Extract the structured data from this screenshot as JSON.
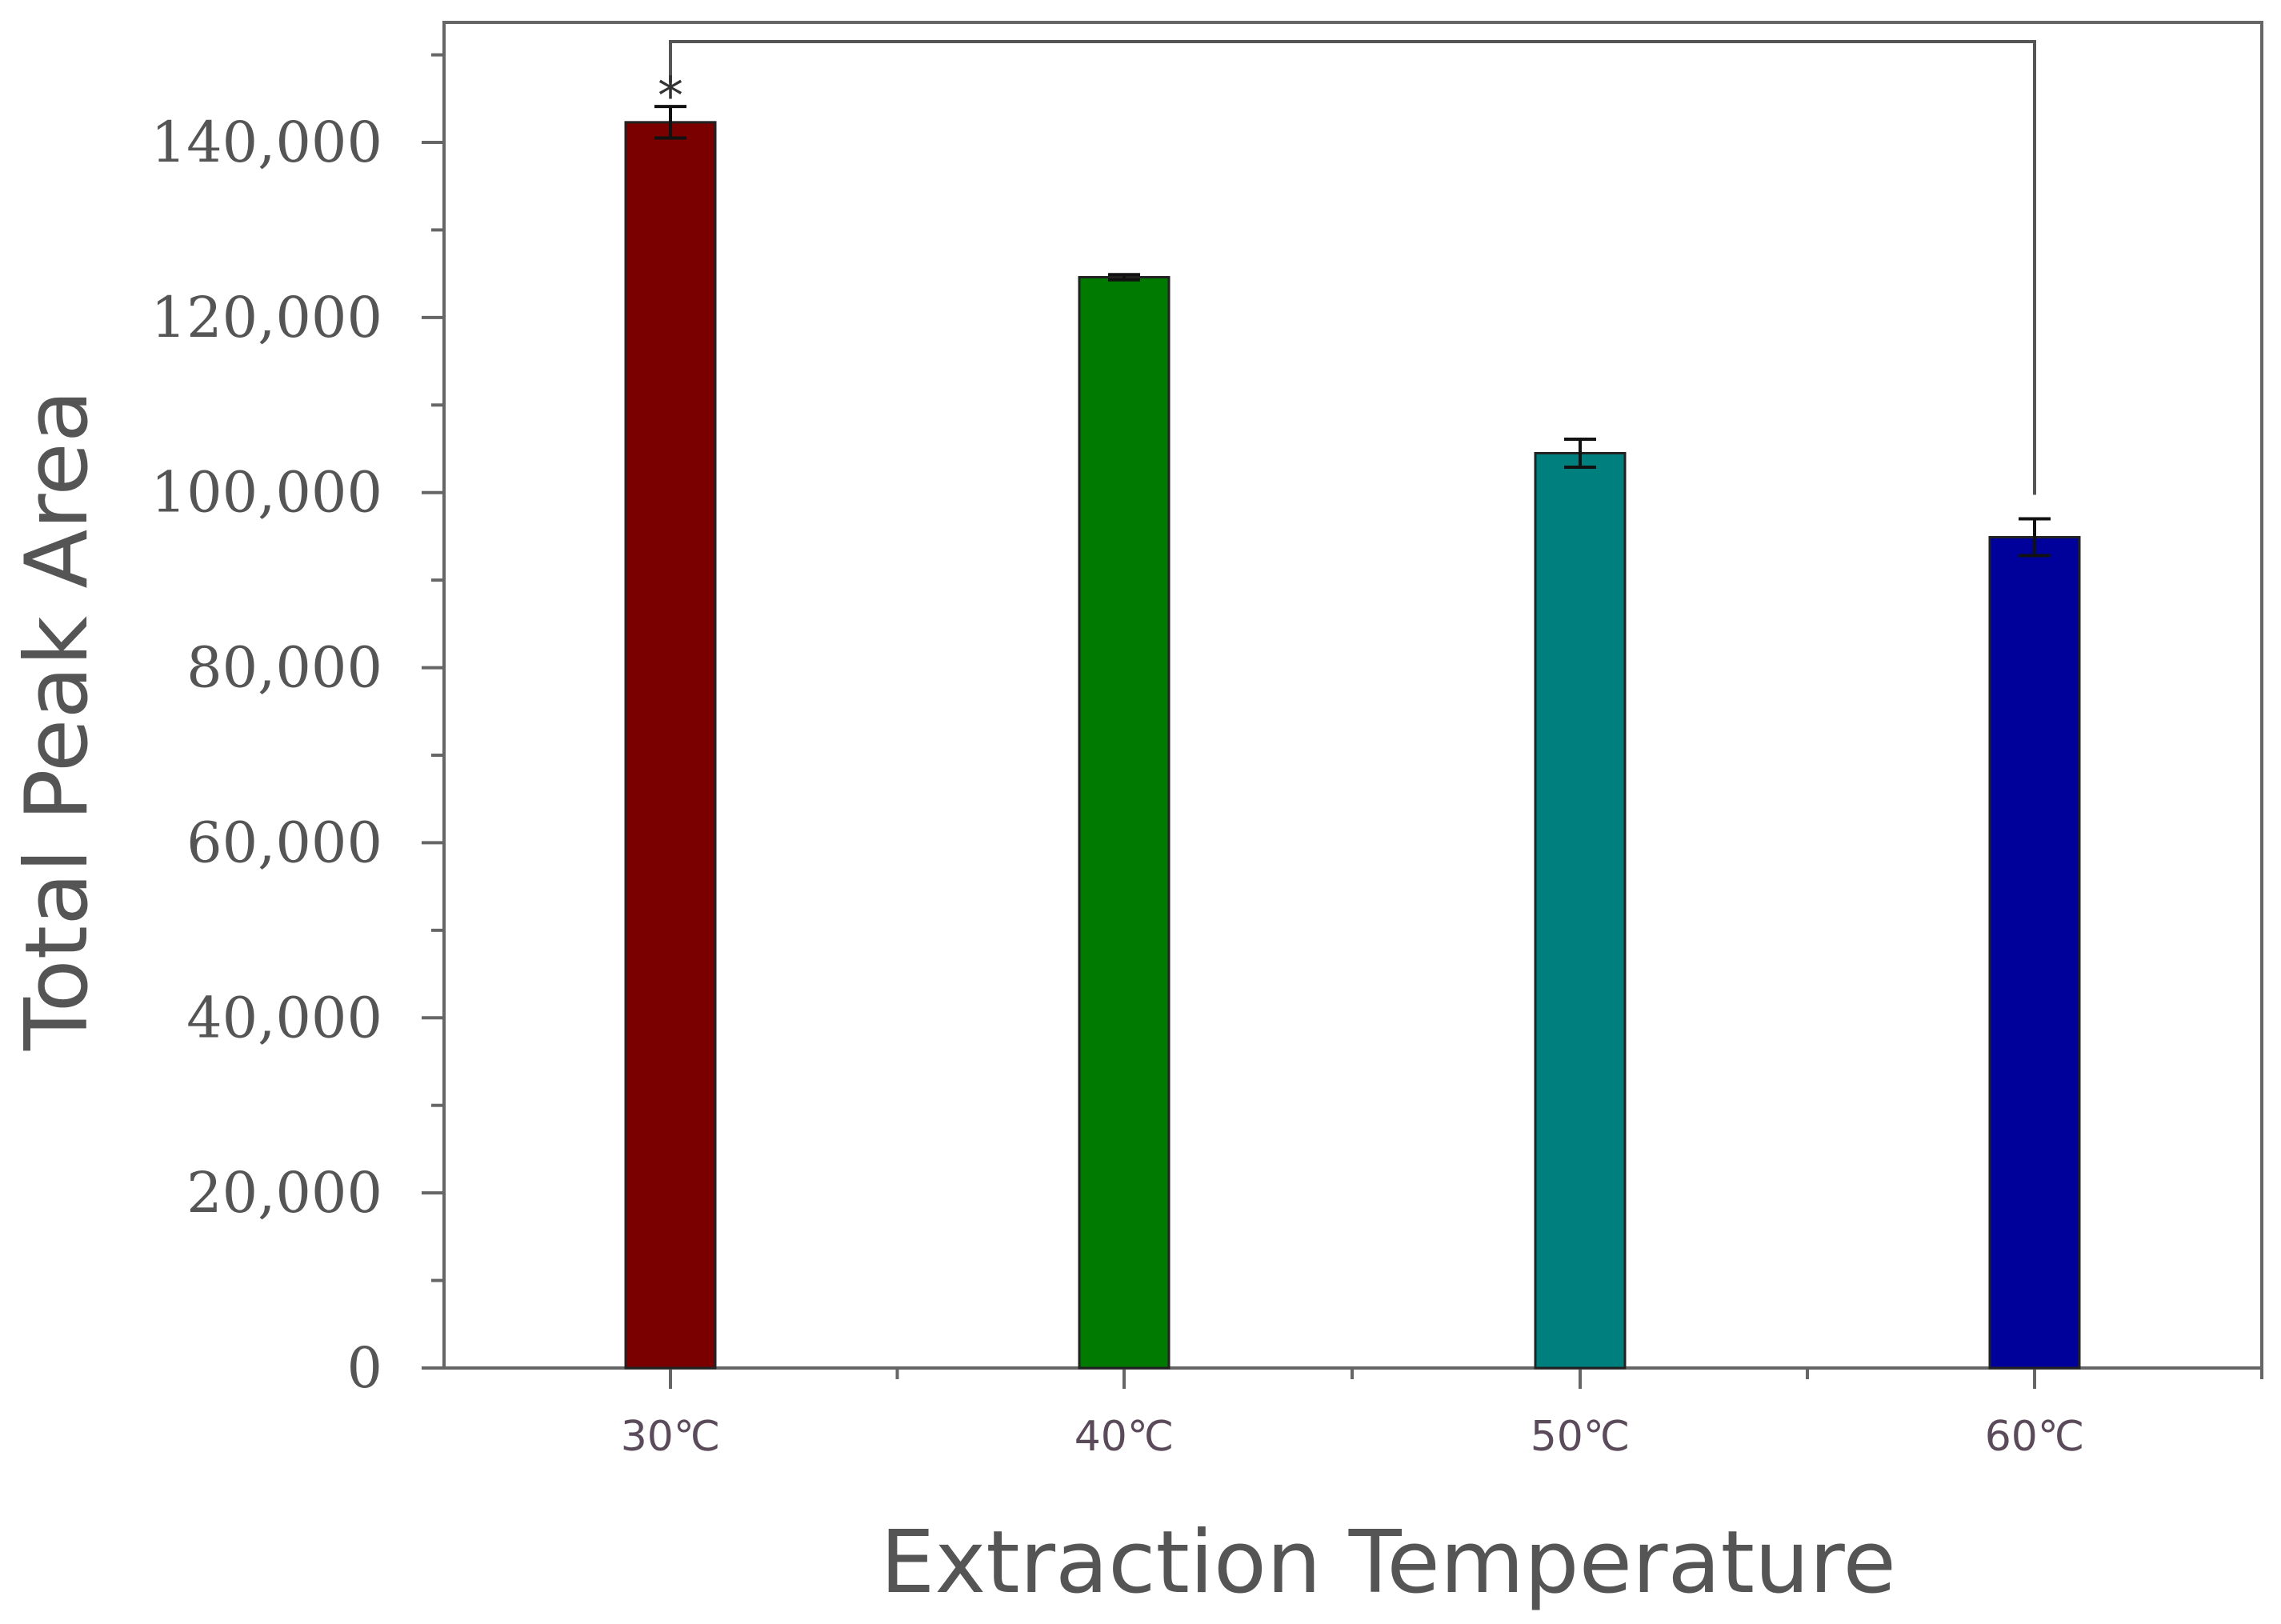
{
  "chart_data": {
    "type": "bar",
    "title": "",
    "xlabel": "Extraction Temperature",
    "ylabel": "Total Peak Area",
    "categories": [
      "30℃",
      "40℃",
      "50℃",
      "60℃"
    ],
    "values": [
      142300,
      124600,
      104500,
      94900
    ],
    "errors": [
      1800,
      300,
      1600,
      2100
    ],
    "colors": [
      "#7a0000",
      "#007a00",
      "#007f7f",
      "#00009a"
    ],
    "ylim": [
      0,
      155000
    ],
    "yticks": [
      0,
      20000,
      40000,
      60000,
      80000,
      100000,
      120000,
      140000
    ],
    "ytick_labels": [
      "0",
      "20,000",
      "40,000",
      "60,000",
      "80,000",
      "100,000",
      "120,000",
      "140,000"
    ],
    "grid": false,
    "legend": "none",
    "annotations": [
      {
        "type": "significance-bracket",
        "from": "30℃",
        "to": "60℃",
        "label": "*"
      }
    ]
  }
}
